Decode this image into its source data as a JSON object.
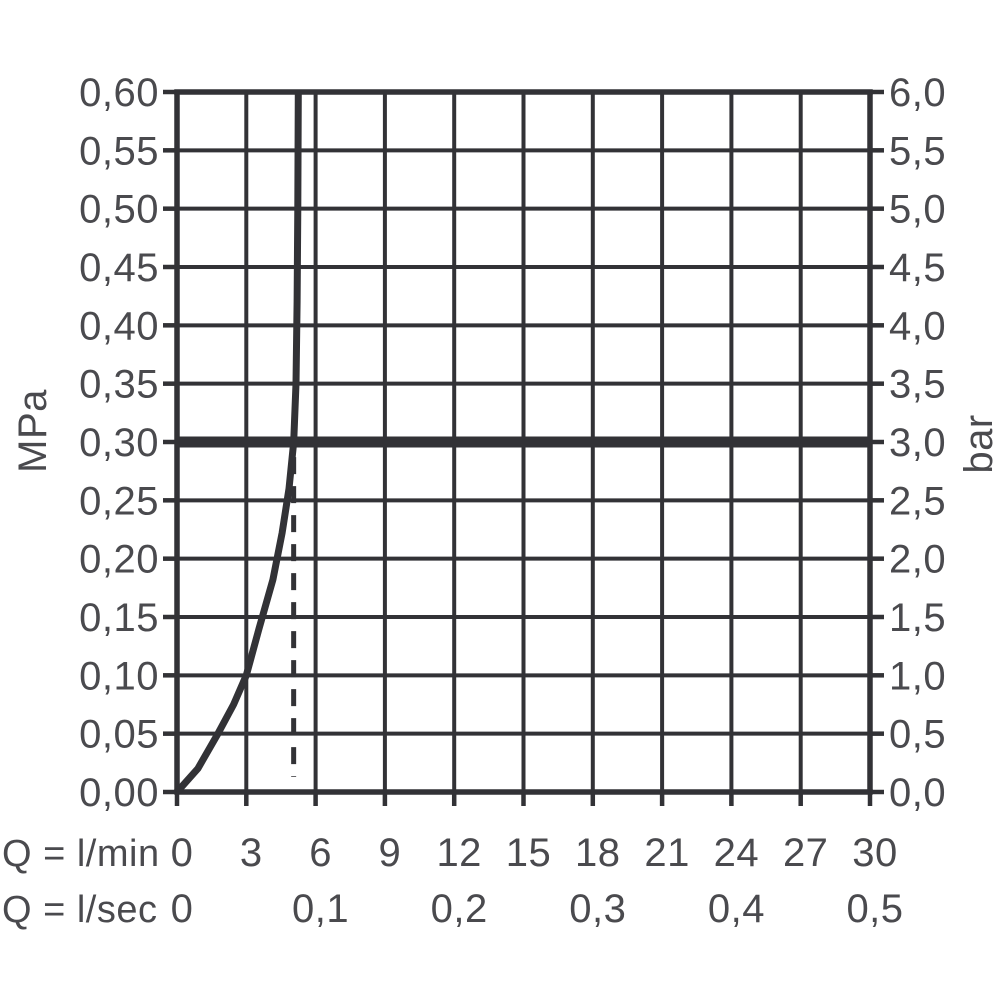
{
  "colors": {
    "line": "#323236",
    "text": "#4a4a4e",
    "background": "#ffffff"
  },
  "axes": {
    "left": {
      "unit": "MPa",
      "tick_labels": [
        "0,60",
        "0,55",
        "0,50",
        "0,45",
        "0,40",
        "0,35",
        "0,30",
        "0,25",
        "0,20",
        "0,15",
        "0,10",
        "0,05",
        "0,00"
      ]
    },
    "right": {
      "unit": "bar",
      "tick_labels": [
        "6,0",
        "5,5",
        "5,0",
        "4,5",
        "4,0",
        "3,5",
        "3,0",
        "2,5",
        "2,0",
        "1,5",
        "1,0",
        "0,5",
        "0,0"
      ]
    },
    "bottom_lmin": {
      "label": "Q = l/min",
      "tick_labels": [
        "0",
        "3",
        "6",
        "9",
        "12",
        "15",
        "18",
        "21",
        "24",
        "27",
        "30"
      ],
      "tick_values": [
        0,
        3,
        6,
        9,
        12,
        15,
        18,
        21,
        24,
        27,
        30
      ]
    },
    "bottom_lsec": {
      "label": "Q = l/sec",
      "tick_labels": [
        "0",
        "0,1",
        "0,2",
        "0,3",
        "0,4",
        "0,5"
      ],
      "tick_values_lmin": [
        0,
        6,
        12,
        18,
        24,
        30
      ]
    }
  },
  "chart_data": {
    "type": "line",
    "title": "",
    "xlabel": "Q = l/min",
    "x2label": "Q = l/sec",
    "ylabel_left": "MPa",
    "ylabel_right": "bar",
    "xlim_lmin": [
      0,
      30
    ],
    "x_step_lmin": 3,
    "xlim_lsec": [
      0,
      0.5
    ],
    "ylim_mpa": [
      0,
      0.6
    ],
    "y_step_mpa": 0.05,
    "ylim_bar": [
      0,
      6.0
    ],
    "grid": true,
    "legend": "none",
    "series": [
      {
        "name": "flow-curve",
        "x_lmin": [
          0,
          0.9,
          1.77,
          2.45,
          3.0,
          3.55,
          4.15,
          4.55,
          4.85,
          5.05,
          5.15,
          5.2,
          5.23,
          5.25
        ],
        "y_mpa": [
          0,
          0.02,
          0.05,
          0.075,
          0.1,
          0.14,
          0.182,
          0.222,
          0.26,
          0.3,
          0.35,
          0.42,
          0.5,
          0.6
        ]
      }
    ],
    "reference_line": {
      "orientation": "horizontal",
      "value_mpa": 0.3,
      "value_bar": 3.0
    },
    "dashed_guide": {
      "orientation": "vertical",
      "x_lmin": 5.05,
      "from_mpa": 0.013,
      "to_mpa": 0.287
    }
  }
}
